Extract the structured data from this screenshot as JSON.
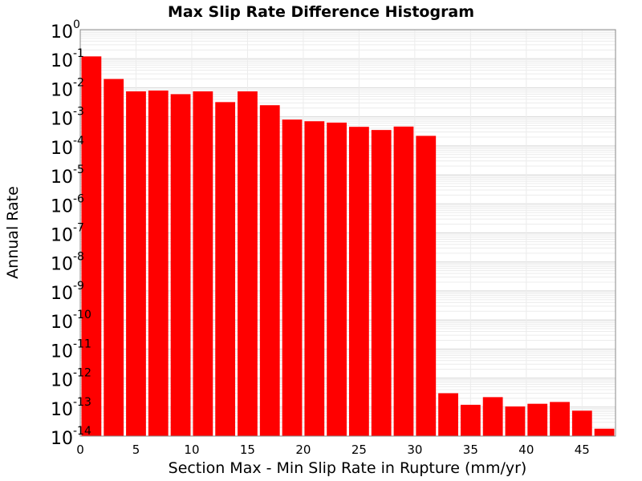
{
  "chart_data": {
    "type": "bar",
    "title": "Max Slip Rate Difference Histogram",
    "xlabel": "Section Max - Min Slip Rate in Rupture (mm/yr)",
    "ylabel": "Annual Rate",
    "y_scale": "log",
    "ylim": [
      1e-14,
      1
    ],
    "xlim": [
      0,
      48
    ],
    "bin_width": 2,
    "x_ticks": [
      "0",
      "5",
      "10",
      "15",
      "20",
      "25",
      "30",
      "35",
      "40",
      "45"
    ],
    "y_ticks": [
      {
        "base": "10",
        "exp": "0"
      },
      {
        "base": "10",
        "exp": "-1"
      },
      {
        "base": "10",
        "exp": "-2"
      },
      {
        "base": "10",
        "exp": "-3"
      },
      {
        "base": "10",
        "exp": "-4"
      },
      {
        "base": "10",
        "exp": "-5"
      },
      {
        "base": "10",
        "exp": "-6"
      },
      {
        "base": "10",
        "exp": "-7"
      },
      {
        "base": "10",
        "exp": "-8"
      },
      {
        "base": "10",
        "exp": "-9"
      },
      {
        "base": "10",
        "exp": "-10"
      },
      {
        "base": "10",
        "exp": "-11"
      },
      {
        "base": "10",
        "exp": "-12"
      },
      {
        "base": "10",
        "exp": "-13"
      },
      {
        "base": "10",
        "exp": "-14"
      }
    ],
    "grid": true,
    "bar_color": "#ff0000",
    "bins": [
      {
        "x": 1,
        "value": 0.12
      },
      {
        "x": 3,
        "value": 0.02
      },
      {
        "x": 5,
        "value": 0.0075
      },
      {
        "x": 7,
        "value": 0.008
      },
      {
        "x": 9,
        "value": 0.006
      },
      {
        "x": 11,
        "value": 0.0075
      },
      {
        "x": 13,
        "value": 0.0032
      },
      {
        "x": 15,
        "value": 0.0075
      },
      {
        "x": 17,
        "value": 0.0025
      },
      {
        "x": 19,
        "value": 0.0008
      },
      {
        "x": 21,
        "value": 0.0007
      },
      {
        "x": 23,
        "value": 0.00063
      },
      {
        "x": 25,
        "value": 0.00045
      },
      {
        "x": 27,
        "value": 0.00035
      },
      {
        "x": 29,
        "value": 0.00046
      },
      {
        "x": 31,
        "value": 0.00022
      },
      {
        "x": 33,
        "value": 3e-13
      },
      {
        "x": 35,
        "value": 1.2e-13
      },
      {
        "x": 37,
        "value": 2.2e-13
      },
      {
        "x": 39,
        "value": 1.05e-13
      },
      {
        "x": 41,
        "value": 1.3e-13
      },
      {
        "x": 43,
        "value": 1.5e-13
      },
      {
        "x": 45,
        "value": 7.5e-14
      },
      {
        "x": 47,
        "value": 1.8e-14
      }
    ]
  }
}
